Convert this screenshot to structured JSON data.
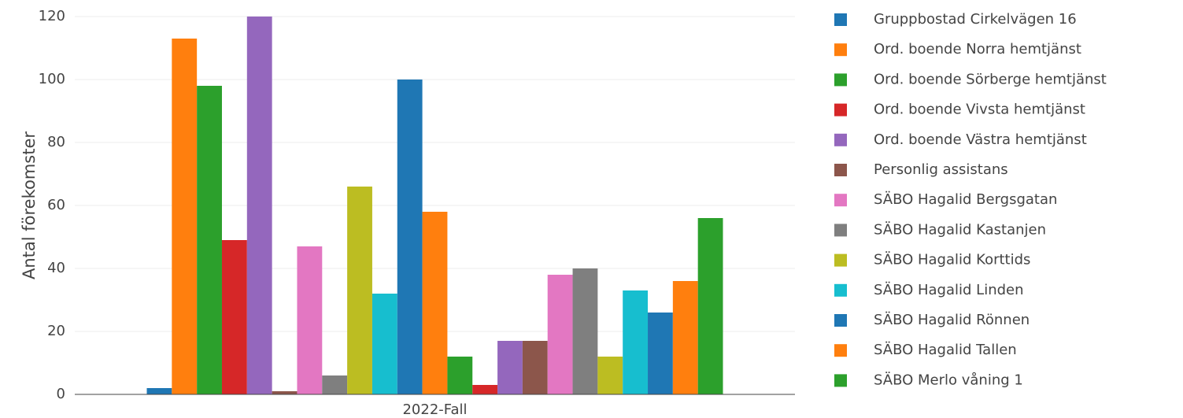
{
  "chart_data": {
    "type": "bar",
    "categories": [
      "2022-Fall"
    ],
    "ylabel": "Antal förekomster",
    "ylim": [
      0,
      120
    ],
    "yticks": [
      0,
      20,
      40,
      60,
      80,
      100,
      120
    ],
    "grid": true,
    "series": [
      {
        "name": "Gruppbostad Cirkelvägen 16",
        "color": "#1f77b4",
        "values": [
          2
        ]
      },
      {
        "name": "Ord. boende Norra hemtjänst",
        "color": "#ff7f0e",
        "values": [
          113
        ]
      },
      {
        "name": "Ord. boende Sörberge hemtjänst",
        "color": "#2ca02c",
        "values": [
          98
        ]
      },
      {
        "name": "Ord. boende Vivsta hemtjänst",
        "color": "#d62728",
        "values": [
          49
        ]
      },
      {
        "name": "Ord. boende Västra hemtjänst",
        "color": "#9467bd",
        "values": [
          120
        ]
      },
      {
        "name": "Personlig assistans",
        "color": "#8c564b",
        "values": [
          1
        ]
      },
      {
        "name": "SÄBO Hagalid Bergsgatan",
        "color": "#e377c2",
        "values": [
          47
        ]
      },
      {
        "name": "SÄBO Hagalid Kastanjen",
        "color": "#7f7f7f",
        "values": [
          6
        ]
      },
      {
        "name": "SÄBO Hagalid Korttids",
        "color": "#bcbd22",
        "values": [
          66
        ]
      },
      {
        "name": "SÄBO Hagalid Linden",
        "color": "#17becf",
        "values": [
          32
        ]
      },
      {
        "name": "SÄBO Hagalid Rönnen",
        "color": "#1f77b4",
        "values": [
          100
        ]
      },
      {
        "name": "SÄBO Hagalid Tallen",
        "color": "#ff7f0e",
        "values": [
          58
        ]
      },
      {
        "name": "SÄBO Merlo våning 1",
        "color": "#2ca02c",
        "values": [
          12
        ]
      },
      {
        "color": "#d62728",
        "values": [
          3
        ]
      },
      {
        "color": "#9467bd",
        "values": [
          17
        ]
      },
      {
        "color": "#8c564b",
        "values": [
          17
        ]
      },
      {
        "color": "#e377c2",
        "values": [
          38
        ]
      },
      {
        "color": "#7f7f7f",
        "values": [
          40
        ]
      },
      {
        "color": "#bcbd22",
        "values": [
          12
        ]
      },
      {
        "color": "#17becf",
        "values": [
          33
        ]
      },
      {
        "color": "#1f77b4",
        "values": [
          26
        ]
      },
      {
        "color": "#ff7f0e",
        "values": [
          36
        ]
      },
      {
        "color": "#2ca02c",
        "values": [
          56
        ]
      }
    ]
  }
}
